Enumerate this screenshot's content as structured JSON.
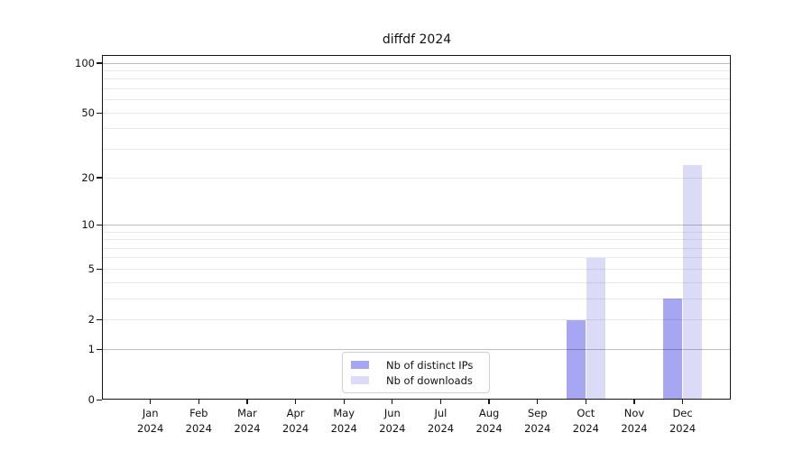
{
  "chart_data": {
    "type": "bar",
    "title": "diffdf 2024",
    "categories": [
      "Jan",
      "Feb",
      "Mar",
      "Apr",
      "May",
      "Jun",
      "Jul",
      "Aug",
      "Sep",
      "Oct",
      "Nov",
      "Dec"
    ],
    "category_year": "2024",
    "series": [
      {
        "name": "Nb of distinct IPs",
        "color": "#a6a6f2",
        "values": [
          0,
          0,
          0,
          0,
          0,
          0,
          0,
          0,
          0,
          2,
          0,
          3
        ]
      },
      {
        "name": "Nb of downloads",
        "color": "#dbdbf8",
        "values": [
          0,
          0,
          0,
          0,
          0,
          0,
          0,
          0,
          0,
          6,
          0,
          24
        ]
      }
    ],
    "xlabel": "",
    "ylabel": "",
    "yticks": [
      0,
      1,
      2,
      5,
      10,
      20,
      50,
      100
    ],
    "ylim": [
      0,
      112
    ],
    "yscale": "log10(1+x)",
    "grid": {
      "on": true,
      "decade_values": [
        1,
        10,
        100
      ],
      "minor_values": [
        2,
        3,
        4,
        5,
        6,
        7,
        8,
        9,
        20,
        30,
        40,
        50,
        60,
        70,
        80,
        90
      ],
      "decade_color": "rgba(0,0,0,0.25)",
      "minor_color": "rgba(0,0,0,0.085)"
    },
    "legend_position": "lower center (inside plot)",
    "bar_layout": "grouped, 2 bars per month"
  },
  "colors": {
    "background": "#ffffff",
    "axis": "#151515",
    "text": "#111111",
    "legend_border": "#cfcfcf"
  }
}
